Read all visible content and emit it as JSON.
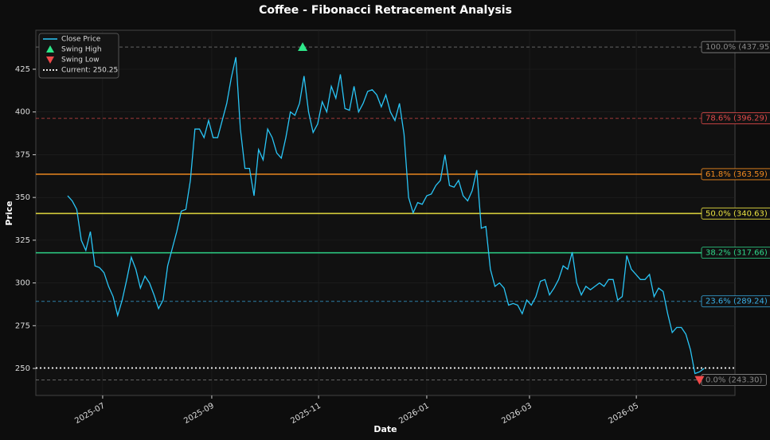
{
  "chart_data": {
    "type": "line",
    "title": "Coffee - Fibonacci Retracement Analysis",
    "xlabel": "Date",
    "ylabel": "Price",
    "xlim": [
      -7.0,
      146.8
    ],
    "ylim": [
      234.2,
      447.8
    ],
    "xticks": [
      {
        "value": 7.7,
        "label": "2025-07"
      },
      {
        "value": 31.7,
        "label": "2025-09"
      },
      {
        "value": 55.2,
        "label": "2025-11"
      },
      {
        "value": 79.0,
        "label": "2026-01"
      },
      {
        "value": 101.6,
        "label": "2026-03"
      },
      {
        "value": 125.1,
        "label": "2026-05"
      }
    ],
    "yticks": [
      250,
      275,
      300,
      325,
      350,
      375,
      400,
      425
    ],
    "grid": true,
    "legend": "upper left",
    "series": [
      {
        "name": "Close Price",
        "color": "#29c5f6",
        "values": [
          351,
          348,
          343,
          325,
          319,
          330,
          310,
          309,
          306,
          298,
          292,
          281,
          290,
          302,
          315,
          308,
          297,
          304,
          300,
          293,
          285,
          290,
          310,
          320,
          330,
          342,
          343,
          360,
          390,
          390,
          385,
          395,
          385,
          385,
          395,
          405,
          420,
          432,
          390,
          367,
          367,
          351,
          378,
          372,
          390,
          385,
          376,
          373,
          385,
          400,
          398,
          405,
          421,
          400,
          388,
          393,
          406,
          400,
          415,
          408,
          422,
          402,
          401,
          415,
          400,
          405,
          412,
          413,
          410,
          403,
          410,
          400,
          395,
          405,
          387,
          350,
          341,
          347,
          346,
          351,
          352,
          357,
          360,
          375,
          357,
          356,
          360,
          351,
          348,
          354,
          366,
          332,
          333,
          308,
          298,
          300,
          297,
          287,
          288,
          287,
          282,
          290,
          287,
          292,
          301,
          302,
          293,
          297,
          302,
          310,
          308,
          318,
          300,
          293,
          298,
          296,
          298,
          300,
          298,
          302,
          302,
          290,
          292,
          316,
          308,
          305,
          302,
          302,
          305,
          292,
          297,
          295,
          282,
          271,
          274,
          274,
          270,
          261,
          247,
          248,
          250
        ]
      }
    ],
    "markers": [
      {
        "name": "Swing High",
        "color": "#2ee88a",
        "shape": "triangle-up",
        "x": 51.7,
        "y": 437.95
      },
      {
        "name": "Swing Low",
        "color": "#f04a4a",
        "shape": "triangle-down",
        "x": 139,
        "y": 243.3
      }
    ],
    "current": {
      "name": "Current: 250.25",
      "value": 250.25,
      "color": "#ffffff"
    },
    "levels": [
      {
        "label": "100.0% (437.95)",
        "value": 437.95,
        "color": "#888888",
        "dashed": true
      },
      {
        "label": "78.6% (396.29)",
        "value": 396.29,
        "color": "#e04a4a",
        "dashed": true
      },
      {
        "label": "61.8% (363.59)",
        "value": 363.59,
        "color": "#f08a20",
        "dashed": false
      },
      {
        "label": "50.0% (340.63)",
        "value": 340.63,
        "color": "#e8e040",
        "dashed": false
      },
      {
        "label": "38.2% (317.66)",
        "value": 317.66,
        "color": "#2ed88a",
        "dashed": false
      },
      {
        "label": "23.6% (289.24)",
        "value": 289.24,
        "color": "#3ab0e8",
        "dashed": true
      },
      {
        "label": "0.0% (243.30)",
        "value": 243.3,
        "color": "#888888",
        "dashed": true
      }
    ]
  }
}
